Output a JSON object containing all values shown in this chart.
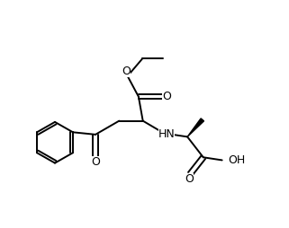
{
  "background": "#ffffff",
  "line_color": "#000000",
  "lw": 1.4,
  "fig_width": 3.21,
  "fig_height": 2.54,
  "dpi": 100,
  "xlim": [
    0,
    10
  ],
  "ylim": [
    0,
    8
  ]
}
